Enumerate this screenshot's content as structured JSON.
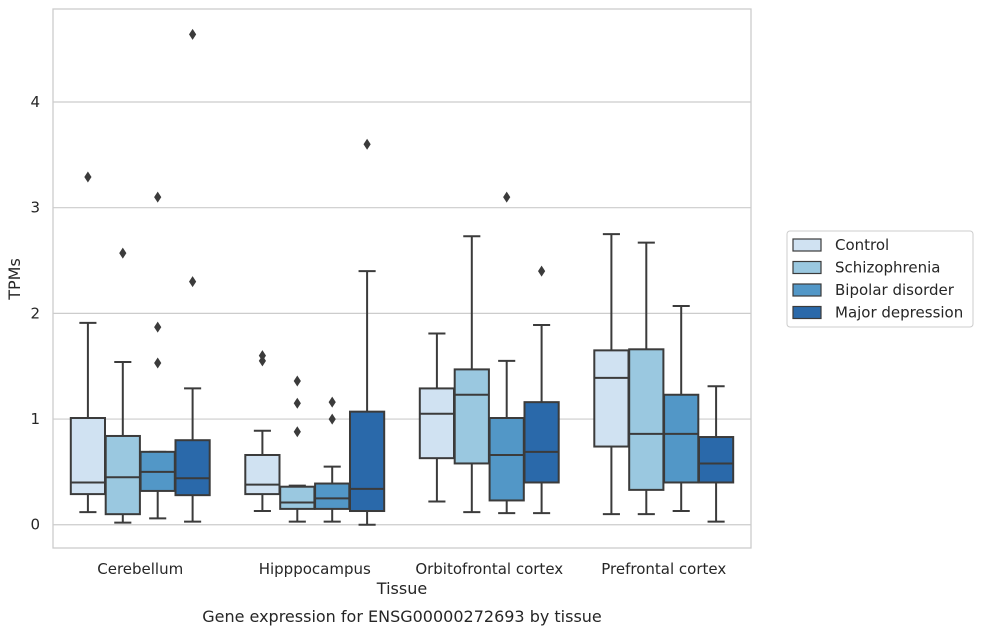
{
  "chart_data": {
    "type": "boxplot",
    "caption": "Gene expression for ENSG00000272693 by tissue",
    "xlabel": "Tissue",
    "ylabel": "TPMs",
    "ylim": [
      -0.22,
      4.88
    ],
    "yticks": [
      "0",
      "1",
      "2",
      "3",
      "4"
    ],
    "grid": "horizontal",
    "legend_placement": "right",
    "categories": [
      "Cerebellum",
      "Hipppocampus",
      "Orbitofrontal cortex",
      "Prefrontal cortex"
    ],
    "series": [
      {
        "name": "Control",
        "color": "#d0e2f2",
        "boxes": [
          {
            "whisker_low": 0.12,
            "q1": 0.29,
            "median": 0.4,
            "q3": 1.01,
            "whisker_high": 1.91,
            "outliers": [
              3.29
            ]
          },
          {
            "whisker_low": 0.13,
            "q1": 0.29,
            "median": 0.38,
            "q3": 0.66,
            "whisker_high": 0.89,
            "outliers": [
              1.55,
              1.6
            ]
          },
          {
            "whisker_low": 0.22,
            "q1": 0.63,
            "median": 1.05,
            "q3": 1.29,
            "whisker_high": 1.81,
            "outliers": []
          },
          {
            "whisker_low": 0.1,
            "q1": 0.74,
            "median": 1.39,
            "q3": 1.65,
            "whisker_high": 2.75,
            "outliers": []
          }
        ]
      },
      {
        "name": "Schizophrenia",
        "color": "#9ac8e0",
        "boxes": [
          {
            "whisker_low": 0.02,
            "q1": 0.1,
            "median": 0.45,
            "q3": 0.84,
            "whisker_high": 1.54,
            "outliers": [
              2.57
            ]
          },
          {
            "whisker_low": 0.03,
            "q1": 0.15,
            "median": 0.21,
            "q3": 0.36,
            "whisker_high": 0.37,
            "outliers": [
              0.88,
              1.15,
              1.36
            ]
          },
          {
            "whisker_low": 0.12,
            "q1": 0.58,
            "median": 1.23,
            "q3": 1.47,
            "whisker_high": 2.73,
            "outliers": []
          },
          {
            "whisker_low": 0.1,
            "q1": 0.33,
            "median": 0.86,
            "q3": 1.66,
            "whisker_high": 2.67,
            "outliers": []
          }
        ]
      },
      {
        "name": "Bipolar disorder",
        "color": "#5297c7",
        "boxes": [
          {
            "whisker_low": 0.06,
            "q1": 0.32,
            "median": 0.5,
            "q3": 0.69,
            "whisker_high": 0.69,
            "outliers": [
              1.53,
              1.87,
              3.1
            ]
          },
          {
            "whisker_low": 0.03,
            "q1": 0.15,
            "median": 0.25,
            "q3": 0.39,
            "whisker_high": 0.55,
            "outliers": [
              1.0,
              1.16
            ]
          },
          {
            "whisker_low": 0.11,
            "q1": 0.23,
            "median": 0.66,
            "q3": 1.01,
            "whisker_high": 1.55,
            "outliers": [
              3.1
            ]
          },
          {
            "whisker_low": 0.13,
            "q1": 0.4,
            "median": 0.86,
            "q3": 1.23,
            "whisker_high": 2.07,
            "outliers": []
          }
        ]
      },
      {
        "name": "Major depression",
        "color": "#2a69aa",
        "boxes": [
          {
            "whisker_low": 0.03,
            "q1": 0.28,
            "median": 0.44,
            "q3": 0.8,
            "whisker_high": 1.29,
            "outliers": [
              2.3,
              4.64
            ]
          },
          {
            "whisker_low": 0.0,
            "q1": 0.13,
            "median": 0.34,
            "q3": 1.07,
            "whisker_high": 2.4,
            "outliers": [
              3.6
            ]
          },
          {
            "whisker_low": 0.11,
            "q1": 0.4,
            "median": 0.69,
            "q3": 1.16,
            "whisker_high": 1.89,
            "outliers": [
              2.4
            ]
          },
          {
            "whisker_low": 0.03,
            "q1": 0.4,
            "median": 0.58,
            "q3": 0.83,
            "whisker_high": 1.31,
            "outliers": []
          }
        ]
      }
    ]
  }
}
